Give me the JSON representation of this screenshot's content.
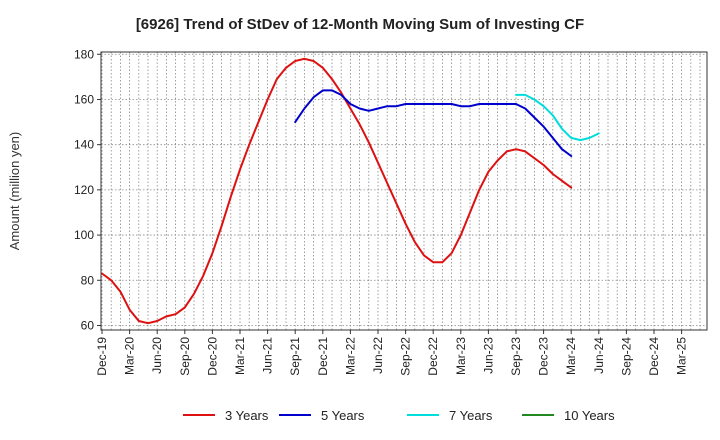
{
  "chart_data": {
    "type": "line",
    "title": "[6926]  Trend of StDev of 12-Month Moving Sum of Investing CF",
    "ylabel": "Amount (million yen)",
    "xlabel": "",
    "ylim": [
      58,
      181
    ],
    "yticks": [
      60,
      80,
      100,
      120,
      140,
      160,
      180
    ],
    "x_tick_labels": [
      "Dec-19",
      "Mar-20",
      "Jun-20",
      "Sep-20",
      "Dec-20",
      "Mar-21",
      "Jun-21",
      "Sep-21",
      "Dec-21",
      "Mar-22",
      "Jun-22",
      "Sep-22",
      "Dec-22",
      "Mar-23",
      "Jun-23",
      "Sep-23",
      "Dec-23",
      "Mar-24",
      "Jun-24",
      "Sep-24",
      "Dec-24",
      "Mar-25"
    ],
    "x_months": [
      "Dec-19",
      "Jan-20",
      "Feb-20",
      "Mar-20",
      "Apr-20",
      "May-20",
      "Jun-20",
      "Jul-20",
      "Aug-20",
      "Sep-20",
      "Oct-20",
      "Nov-20",
      "Dec-20",
      "Jan-21",
      "Feb-21",
      "Mar-21",
      "Apr-21",
      "May-21",
      "Jun-21",
      "Jul-21",
      "Aug-21",
      "Sep-21",
      "Oct-21",
      "Nov-21",
      "Dec-21",
      "Jan-22",
      "Feb-22",
      "Mar-22",
      "Apr-22",
      "May-22",
      "Jun-22",
      "Jul-22",
      "Aug-22",
      "Sep-22",
      "Oct-22",
      "Nov-22",
      "Dec-22",
      "Jan-23",
      "Feb-23",
      "Mar-23",
      "Apr-23",
      "May-23",
      "Jun-23",
      "Jul-23",
      "Aug-23",
      "Sep-23",
      "Oct-23",
      "Nov-23",
      "Dec-23",
      "Jan-24",
      "Feb-24",
      "Mar-24",
      "Apr-24",
      "May-24",
      "Jun-24",
      "Jul-24",
      "Aug-24",
      "Sep-24",
      "Oct-24",
      "Nov-24",
      "Dec-24",
      "Jan-25",
      "Feb-25",
      "Mar-25",
      "Apr-25",
      "May-25"
    ],
    "grid": true,
    "legend_position": "bottom",
    "series": [
      {
        "name": "3 Years",
        "color": "#dd1111",
        "values": [
          83,
          80,
          75,
          67,
          62,
          61,
          62,
          64,
          65,
          68,
          74,
          82,
          92,
          104,
          117,
          129,
          140,
          150,
          160,
          169,
          174,
          177,
          178,
          177,
          174,
          169,
          163,
          156,
          149,
          141,
          132,
          123,
          114,
          105,
          97,
          91,
          88,
          88,
          92,
          100,
          110,
          120,
          128,
          133,
          137,
          138,
          137,
          134,
          131,
          127,
          124,
          121,
          null,
          null,
          null,
          null,
          null,
          null,
          null,
          null,
          null,
          null,
          null,
          null,
          null,
          null
        ]
      },
      {
        "name": "5 Years",
        "color": "#0000cc",
        "values": [
          null,
          null,
          null,
          null,
          null,
          null,
          null,
          null,
          null,
          null,
          null,
          null,
          null,
          null,
          null,
          null,
          null,
          null,
          null,
          null,
          null,
          150,
          156,
          161,
          164,
          164,
          162,
          158,
          156,
          155,
          156,
          157,
          157,
          158,
          158,
          158,
          158,
          158,
          158,
          157,
          157,
          158,
          158,
          158,
          158,
          158,
          156,
          152,
          148,
          143,
          138,
          135,
          null,
          null,
          null,
          null,
          null,
          null,
          null,
          null,
          null,
          null,
          null,
          null,
          null,
          null
        ]
      },
      {
        "name": "7 Years",
        "color": "#00dddd",
        "values": [
          null,
          null,
          null,
          null,
          null,
          null,
          null,
          null,
          null,
          null,
          null,
          null,
          null,
          null,
          null,
          null,
          null,
          null,
          null,
          null,
          null,
          null,
          null,
          null,
          null,
          null,
          null,
          null,
          null,
          null,
          null,
          null,
          null,
          null,
          null,
          null,
          null,
          null,
          null,
          null,
          null,
          null,
          null,
          null,
          null,
          162,
          162,
          160,
          157,
          153,
          147,
          143,
          142,
          143,
          145,
          null,
          null,
          null,
          null,
          null,
          null,
          null,
          null,
          null,
          null,
          null
        ]
      },
      {
        "name": "10 Years",
        "color": "#228822",
        "values": []
      }
    ]
  }
}
